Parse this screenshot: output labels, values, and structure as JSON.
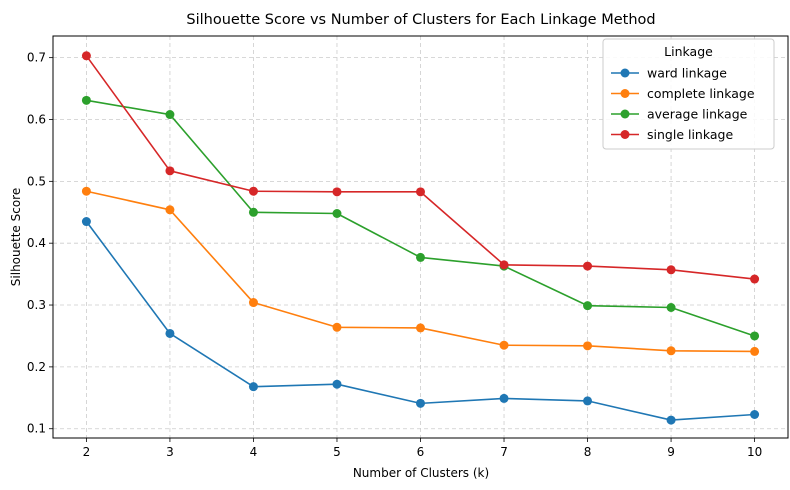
{
  "chart_data": {
    "type": "line",
    "title": "Silhouette Score vs Number of Clusters for Each Linkage Method",
    "xlabel": "Number of Clusters (k)",
    "ylabel": "Silhouette Score",
    "x": [
      2,
      3,
      4,
      5,
      6,
      7,
      8,
      9,
      10
    ],
    "xlim": [
      1.6,
      10.4
    ],
    "ylim": [
      0.085,
      0.735
    ],
    "xticks": [
      "2",
      "3",
      "4",
      "5",
      "6",
      "7",
      "8",
      "9",
      "10"
    ],
    "yticks": [
      "0.1",
      "0.2",
      "0.3",
      "0.4",
      "0.5",
      "0.6",
      "0.7"
    ],
    "grid": true,
    "grid_style": "dashed",
    "legend_title": "Linkage",
    "legend_position": "upper right",
    "series": [
      {
        "name": "ward linkage",
        "color": "#1f77b4",
        "values": [
          0.435,
          0.254,
          0.168,
          0.172,
          0.141,
          0.149,
          0.145,
          0.114,
          0.123
        ]
      },
      {
        "name": "complete linkage",
        "color": "#ff7f0e",
        "values": [
          0.484,
          0.454,
          0.304,
          0.264,
          0.263,
          0.235,
          0.234,
          0.226,
          0.225
        ]
      },
      {
        "name": "average linkage",
        "color": "#2ca02c",
        "values": [
          0.631,
          0.608,
          0.45,
          0.448,
          0.377,
          0.363,
          0.299,
          0.296,
          0.25
        ]
      },
      {
        "name": "single linkage",
        "color": "#d62728",
        "values": [
          0.703,
          0.517,
          0.484,
          0.483,
          0.483,
          0.365,
          0.363,
          0.357,
          0.342
        ]
      }
    ]
  }
}
